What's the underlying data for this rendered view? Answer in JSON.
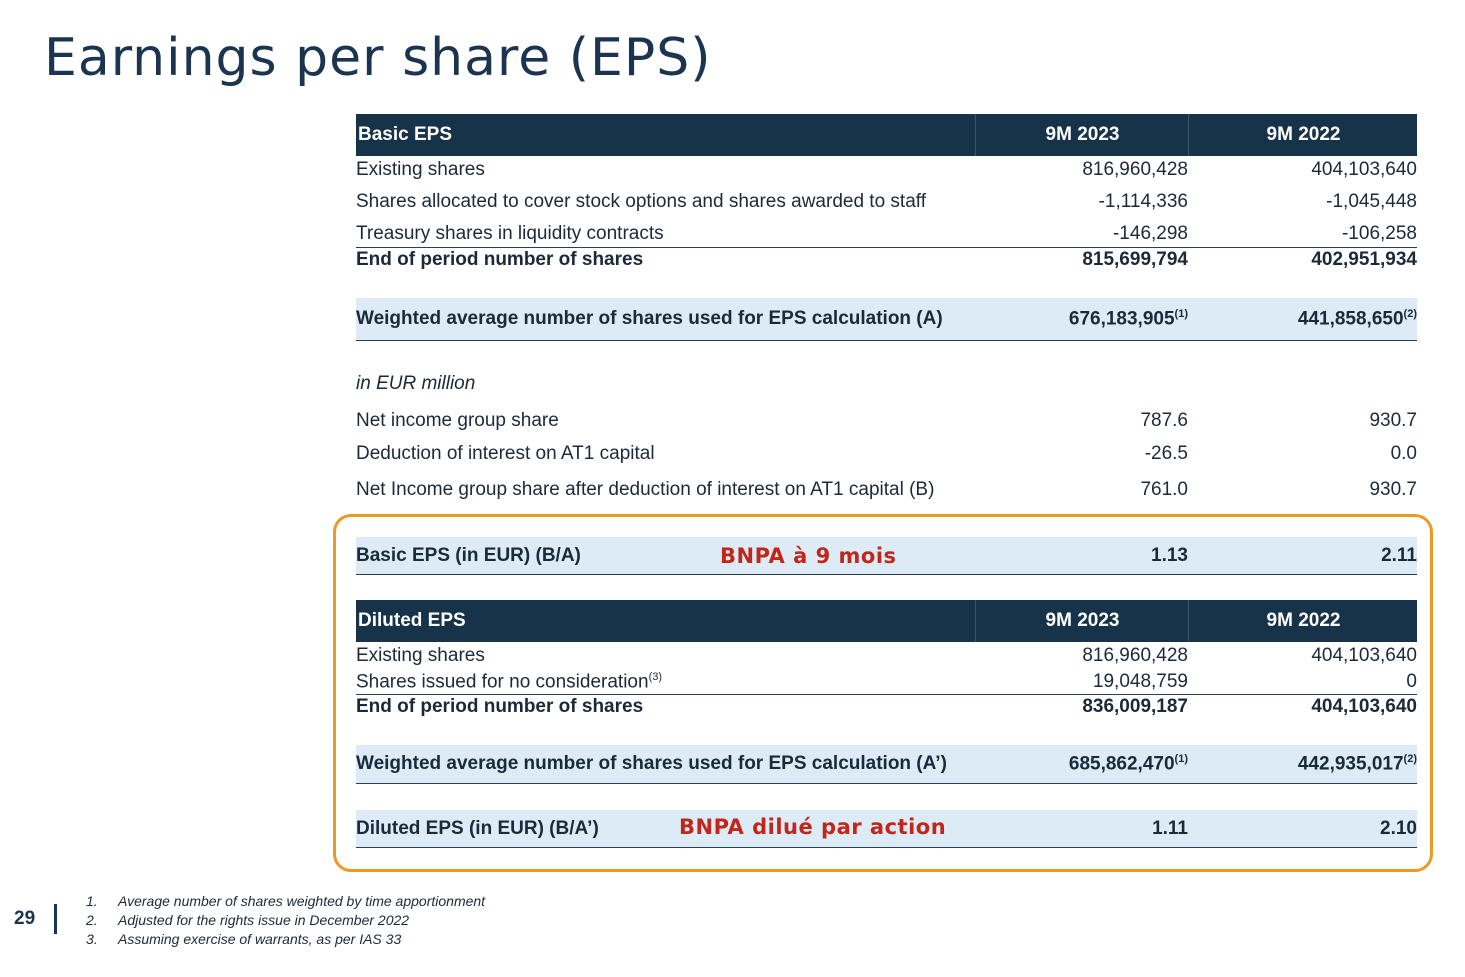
{
  "title": "Earnings per share (EPS)",
  "basic": {
    "header": {
      "label": "Basic EPS",
      "col1": "9M 2023",
      "col2": "9M 2022"
    },
    "rows": [
      {
        "label": "Existing shares",
        "v1": "816,960,428",
        "v2": "404,103,640"
      },
      {
        "label": "Shares allocated to cover stock options and shares awarded  to staff",
        "v1": "-1,114,336",
        "v2": "-1,045,448"
      },
      {
        "label": "Treasury shares in liquidity contracts",
        "v1": "-146,298",
        "v2": "-106,258"
      },
      {
        "label": "End of period number of shares",
        "v1": "815,699,794",
        "v2": "402,951,934"
      }
    ],
    "weighted": {
      "label": "Weighted average number of shares used for EPS calculation (A)",
      "v1": "676,183,905",
      "v1_note": "(1)",
      "v2": "441,858,650",
      "v2_note": "(2)"
    },
    "unit": "in EUR million",
    "income_rows": [
      {
        "label": "Net income group share",
        "v1": "787.6",
        "v2": "930.7"
      },
      {
        "label": "Deduction of interest on AT1 capital",
        "v1": "-26.5",
        "v2": "0.0"
      },
      {
        "label": "Net Income group share after deduction of interest on AT1 capital (B)",
        "v1": "761.0",
        "v2": "930.7"
      }
    ],
    "eps": {
      "label": "Basic EPS (in EUR) (B/A)",
      "v1": "1.13",
      "v2": "2.11",
      "annotation": "BNPA à 9 mois"
    }
  },
  "diluted": {
    "header": {
      "label": "Diluted EPS",
      "col1": "9M 2023",
      "col2": "9M 2022"
    },
    "rows": [
      {
        "label": "Existing shares",
        "v1": "816,960,428",
        "v2": "404,103,640"
      },
      {
        "label": "Shares issued for no consideration",
        "note": "(3)",
        "v1": "19,048,759",
        "v2": "0"
      },
      {
        "label": "End of period number of shares",
        "v1": "836,009,187",
        "v2": "404,103,640"
      }
    ],
    "weighted": {
      "label": "Weighted average number of shares used for EPS calculation (A’)",
      "v1": "685,862,470",
      "v1_note": "(1)",
      "v2": "442,935,017",
      "v2_note": "(2)"
    },
    "eps": {
      "label": "Diluted EPS (in EUR) (B/A’)",
      "v1": "1.11",
      "v2": "2.10",
      "annotation": "BNPA dilué par action"
    }
  },
  "footer": {
    "page": "29",
    "notes": [
      {
        "n": "1.",
        "text": "Average number of shares weighted by time apportionment"
      },
      {
        "n": "2.",
        "text": "Adjusted for the rights issue in December 2022"
      },
      {
        "n": "3.",
        "text": "Assuming exercise of warrants, as per IAS 33"
      }
    ]
  },
  "colors": {
    "header_bg": "#173349",
    "band_bg": "#dcebf6",
    "highlight_border": "#ec9a22",
    "annotation": "#c0271a"
  }
}
